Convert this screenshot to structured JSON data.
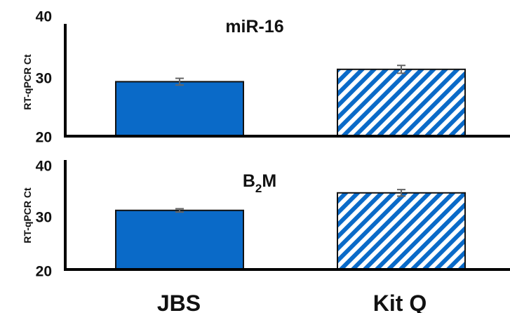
{
  "chart_data": [
    {
      "type": "bar",
      "title": "miR-16",
      "ylabel": "RT-qPCR Ct",
      "categories": [
        "JBS",
        "Kit Q"
      ],
      "values": [
        29.7,
        31.9
      ],
      "errors": [
        0.6,
        0.7
      ],
      "ylim": [
        20,
        40
      ],
      "yticks": [
        20,
        30,
        40
      ],
      "grid": false,
      "bar_styles": [
        "solid",
        "diagonal-hatch"
      ]
    },
    {
      "type": "bar",
      "title_main": "B",
      "title_sub": "2",
      "title_end": "M",
      "ylabel": "RT-qPCR Ct",
      "categories": [
        "JBS",
        "Kit Q"
      ],
      "values": [
        30.8,
        34.0
      ],
      "errors": [
        0.3,
        0.6
      ],
      "ylim": [
        20,
        40
      ],
      "yticks": [
        20,
        30,
        40
      ],
      "grid": false,
      "bar_styles": [
        "solid",
        "diagonal-hatch"
      ]
    }
  ],
  "colors": {
    "bar_fill": "#0a6ac8",
    "bar_edge": "#111111",
    "hatch": "#0a6ac8",
    "error_bar": "#666666",
    "axis": "#000000"
  }
}
